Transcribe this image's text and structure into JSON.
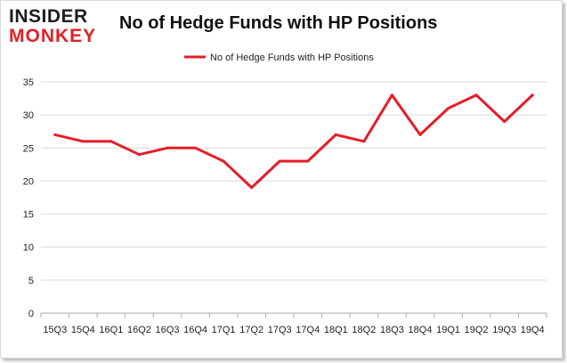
{
  "logo": {
    "line1": "INSIDER",
    "line2": "MONKEY"
  },
  "colors": {
    "series": "#e51d27",
    "grid": "#d9d9d9",
    "axis": "#aaaaaa"
  },
  "chart_data": {
    "type": "line",
    "title": "No of Hedge Funds with HP Positions",
    "xlabel": "",
    "ylabel": "",
    "ylim": [
      0,
      35
    ],
    "yticks": [
      0,
      5,
      10,
      15,
      20,
      25,
      30,
      35
    ],
    "grid": true,
    "legend_position": "top-center",
    "categories": [
      "15Q3",
      "15Q4",
      "16Q1",
      "16Q2",
      "16Q3",
      "16Q4",
      "17Q1",
      "17Q2",
      "17Q3",
      "17Q4",
      "18Q1",
      "18Q2",
      "18Q3",
      "18Q4",
      "19Q1",
      "19Q2",
      "19Q3",
      "19Q4"
    ],
    "series": [
      {
        "name": "No of Hedge Funds with HP Positions",
        "values": [
          27,
          26,
          26,
          24,
          25,
          25,
          23,
          19,
          23,
          23,
          27,
          26,
          33,
          27,
          31,
          33,
          29,
          33
        ]
      }
    ]
  }
}
